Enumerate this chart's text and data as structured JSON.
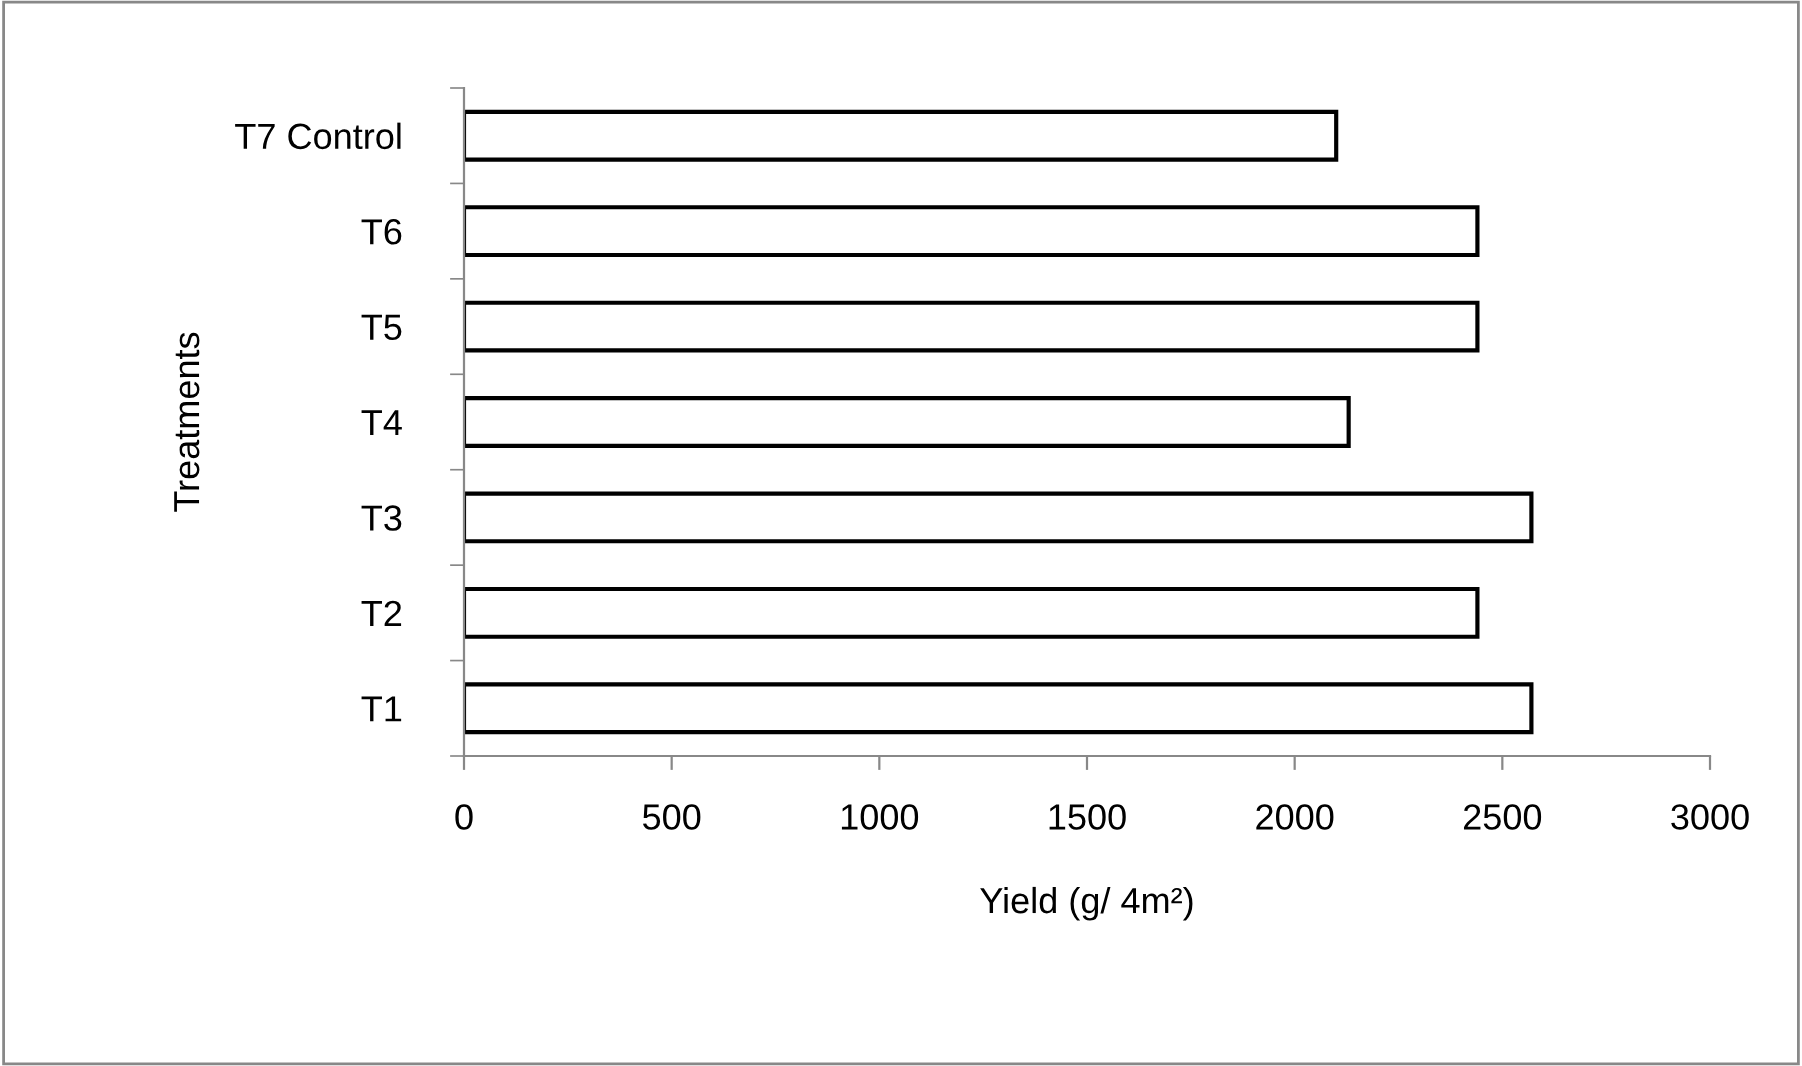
{
  "chart_data": {
    "type": "bar",
    "orientation": "horizontal",
    "xlabel": "Yield (g/ 4m²)",
    "ylabel": "Treatments",
    "categories": [
      "T7 Control",
      "T6",
      "T5",
      "T4",
      "T3",
      "T2",
      "T1"
    ],
    "values": [
      2100,
      2440,
      2440,
      2130,
      2570,
      2440,
      2570
    ],
    "color": "#ffffff",
    "xlim": [
      0,
      3000
    ],
    "xticks": [
      0,
      500,
      1000,
      1500,
      2000,
      2500,
      3000
    ],
    "grid": false,
    "legend": false
  }
}
